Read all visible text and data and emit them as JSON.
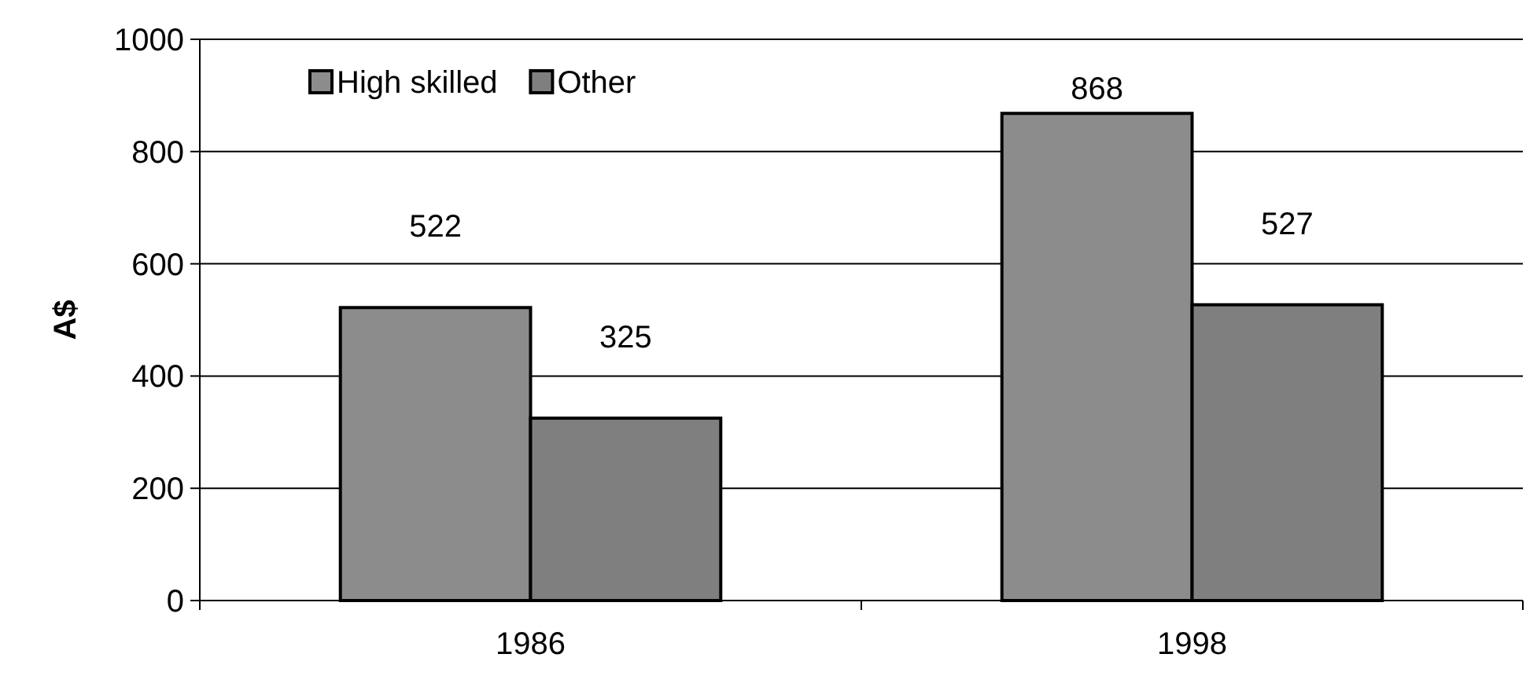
{
  "chart_data": {
    "type": "bar",
    "ylabel": "A$",
    "categories": [
      "1986",
      "1998"
    ],
    "series": [
      {
        "name": "High skilled",
        "color": "#8c8c8c",
        "values": [
          522,
          868
        ]
      },
      {
        "name": "Other",
        "color": "#7f7f7f",
        "values": [
          325,
          527
        ]
      }
    ],
    "ylim": [
      0,
      1000
    ],
    "yticks": [
      0,
      200,
      400,
      600,
      800,
      1000
    ],
    "grid": "y",
    "legend": "top left",
    "data_labels": true
  }
}
